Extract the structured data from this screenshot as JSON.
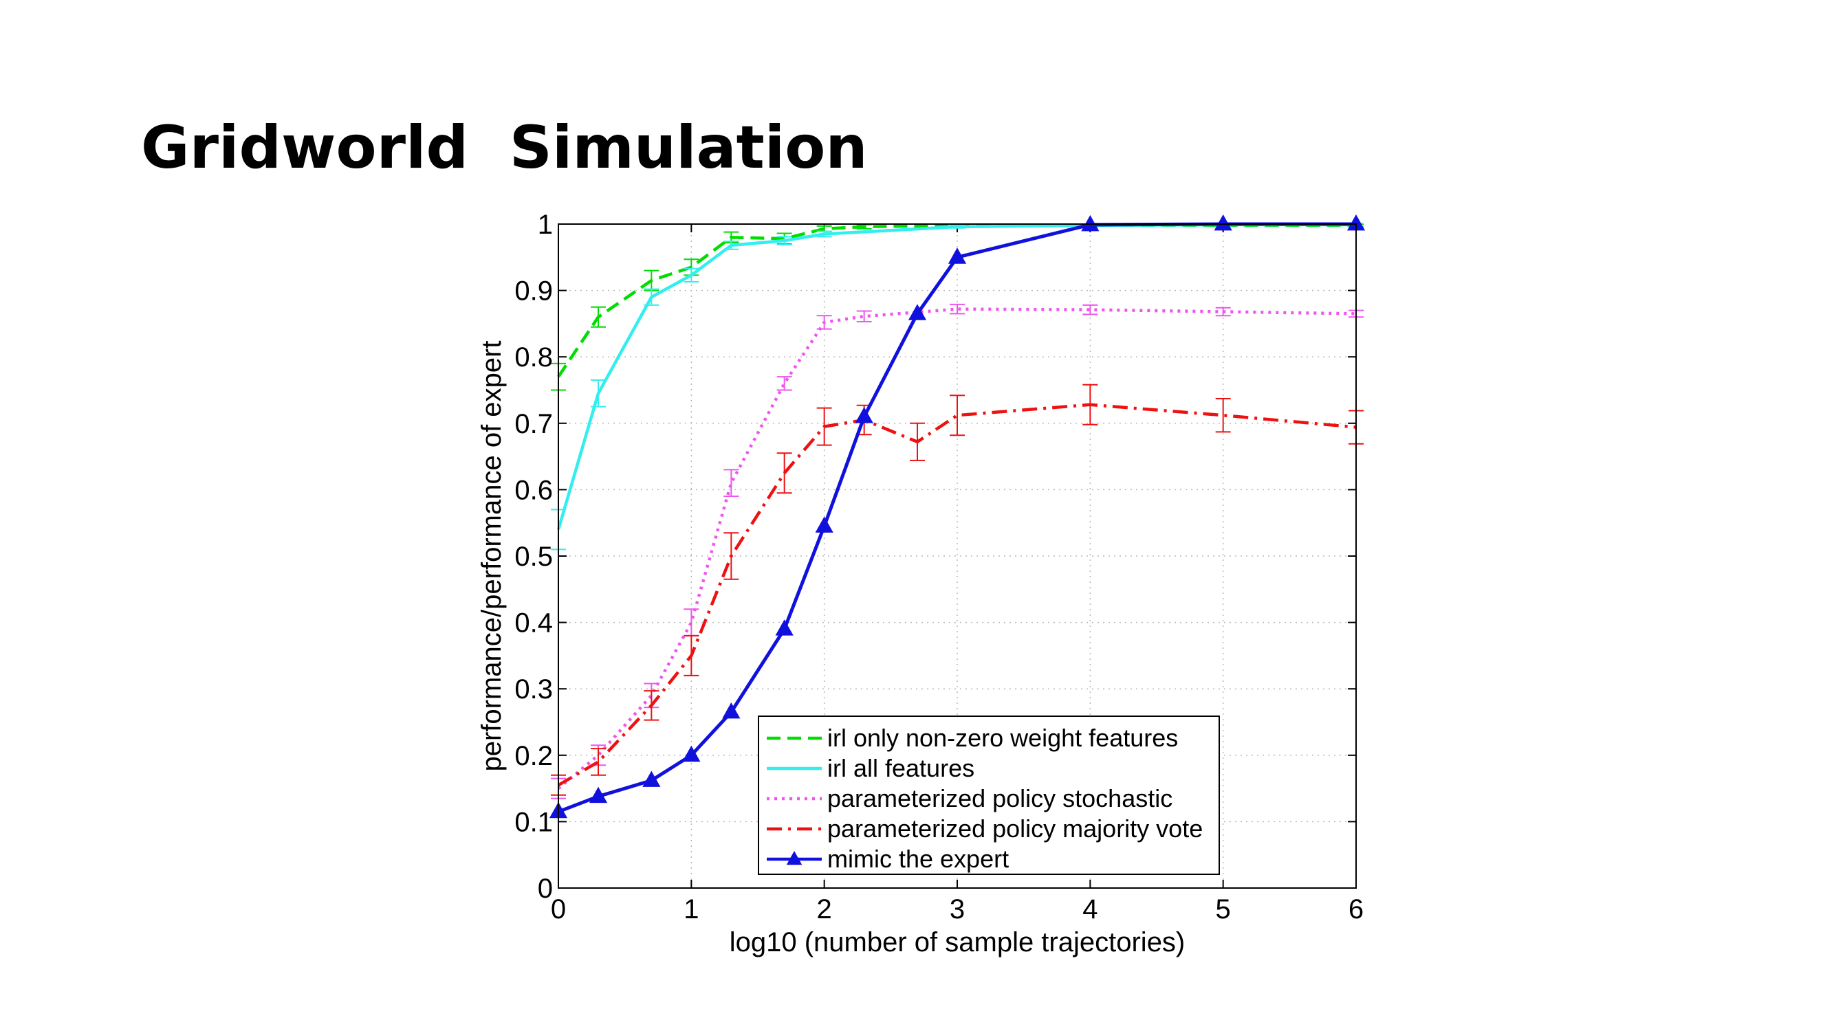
{
  "slide": {
    "title": "Gridworld  Simulation"
  },
  "chart_data": {
    "type": "line",
    "xlabel": "log10 (number of sample trajectories)",
    "ylabel": "performance/performance of expert",
    "xlim": [
      0,
      6
    ],
    "ylim": [
      0,
      1
    ],
    "xticks": [
      0,
      1,
      2,
      3,
      4,
      5,
      6
    ],
    "yticks": [
      0,
      0.1,
      0.2,
      0.3,
      0.4,
      0.5,
      0.6,
      0.7,
      0.8,
      0.9,
      1
    ],
    "ytick_labels": [
      "0",
      "0.1",
      "0.2",
      "0.3",
      "0.4",
      "0.5",
      "0.6",
      "0.7",
      "0.8",
      "0.9",
      "1"
    ],
    "grid": true,
    "legend_position": "bottom-right",
    "series": [
      {
        "name": "irl only non-zero weight features",
        "color": "#00dd00",
        "dash": "dashed",
        "marker": "none",
        "x": [
          0,
          0.3,
          0.7,
          1,
          1.3,
          1.7,
          2,
          2.3,
          3,
          4,
          5,
          6
        ],
        "y": [
          0.77,
          0.86,
          0.915,
          0.935,
          0.98,
          0.978,
          0.993,
          0.996,
          0.998,
          0.998,
          0.998,
          0.998
        ],
        "err": [
          0.02,
          0.015,
          0.015,
          0.012,
          0.008,
          0.008,
          0.004,
          0.003,
          0.002,
          0.002,
          0.002,
          0.002
        ]
      },
      {
        "name": "irl all features",
        "color": "#33eeee",
        "dash": "solid",
        "marker": "none",
        "x": [
          0,
          0.3,
          0.7,
          1,
          1.3,
          1.7,
          2,
          3,
          4,
          5,
          6
        ],
        "y": [
          0.54,
          0.745,
          0.89,
          0.923,
          0.968,
          0.975,
          0.985,
          0.996,
          0.998,
          0.999,
          0.999
        ],
        "err": [
          0.03,
          0.02,
          0.012,
          0.01,
          0.006,
          0.006,
          0.004,
          0.002,
          0.002,
          0.002,
          0.002
        ]
      },
      {
        "name": "parameterized policy stochastic",
        "color": "#ee55ee",
        "dash": "dotted",
        "marker": "none",
        "x": [
          0,
          0.3,
          0.7,
          1,
          1.3,
          1.7,
          2,
          2.3,
          3,
          4,
          5,
          6
        ],
        "y": [
          0.15,
          0.2,
          0.29,
          0.4,
          0.61,
          0.76,
          0.852,
          0.861,
          0.872,
          0.871,
          0.868,
          0.865
        ],
        "err": [
          0.015,
          0.015,
          0.018,
          0.02,
          0.02,
          0.01,
          0.01,
          0.008,
          0.007,
          0.007,
          0.006,
          0.005
        ]
      },
      {
        "name": "parameterized policy majority vote",
        "color": "#ee1111",
        "dash": "dashdot",
        "marker": "none",
        "x": [
          0,
          0.3,
          0.7,
          1,
          1.3,
          1.7,
          2,
          2.3,
          2.7,
          3,
          4,
          5,
          6
        ],
        "y": [
          0.155,
          0.19,
          0.275,
          0.35,
          0.5,
          0.625,
          0.695,
          0.705,
          0.672,
          0.712,
          0.728,
          0.712,
          0.694
        ],
        "err": [
          0.015,
          0.02,
          0.022,
          0.03,
          0.035,
          0.03,
          0.028,
          0.022,
          0.028,
          0.03,
          0.03,
          0.025,
          0.025
        ]
      },
      {
        "name": "mimic the expert",
        "color": "#1111dd",
        "dash": "solid",
        "marker": "triangle",
        "x": [
          0,
          0.3,
          0.7,
          1,
          1.3,
          1.7,
          2,
          2.3,
          2.7,
          3,
          4,
          5,
          6
        ],
        "y": [
          0.115,
          0.138,
          0.162,
          0.2,
          0.265,
          0.39,
          0.545,
          0.71,
          0.865,
          0.95,
          0.999,
          1.0,
          1.0
        ],
        "err": [
          0.004,
          0.004,
          0.004,
          0.004,
          0.004,
          0.004,
          0.005,
          0.004,
          0.003,
          0.002,
          0.001,
          0.001,
          0.001
        ]
      }
    ]
  }
}
